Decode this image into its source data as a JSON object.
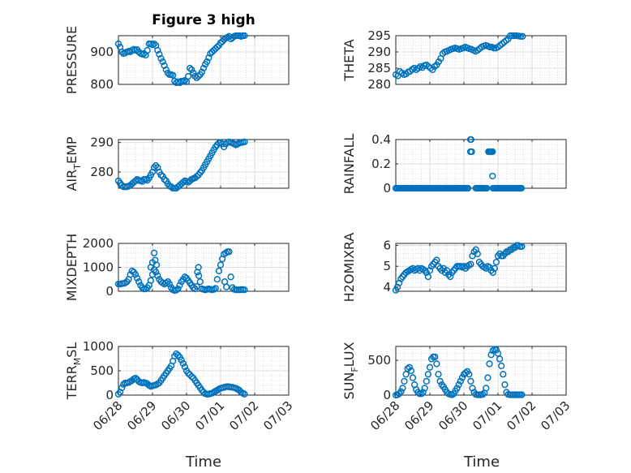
{
  "figure": {
    "title": "Figure 3 high",
    "x_axis_label": "Time",
    "marker_color": "#0072BD",
    "x_tick_labels": [
      "06/28",
      "06/29",
      "06/30",
      "07/01",
      "07/02",
      "07/03"
    ]
  },
  "chart_data": [
    {
      "type": "scatter",
      "ylabel": "PRESSURE",
      "xlabel": "",
      "xlim": [
        "06/28",
        "07/03"
      ],
      "ylim": [
        800,
        950
      ],
      "yticks": [
        800,
        900
      ],
      "grid": true,
      "x_days": [
        0,
        0.05,
        0.1,
        0.15,
        0.2,
        0.25,
        0.3,
        0.35,
        0.4,
        0.45,
        0.5,
        0.55,
        0.6,
        0.65,
        0.7,
        0.75,
        0.8,
        0.85,
        0.9,
        0.95,
        1.0,
        1.05,
        1.1,
        1.15,
        1.2,
        1.25,
        1.3,
        1.35,
        1.4,
        1.45,
        1.5,
        1.55,
        1.6,
        1.65,
        1.7,
        1.75,
        1.8,
        1.85,
        1.9,
        1.95,
        2.0,
        2.05,
        2.1,
        2.15,
        2.2,
        2.25,
        2.3,
        2.35,
        2.4,
        2.45,
        2.5,
        2.55,
        2.6,
        2.65,
        2.7,
        2.75,
        2.8,
        2.85,
        2.9,
        2.95,
        3.0,
        3.05,
        3.1,
        3.15,
        3.2,
        3.25,
        3.3,
        3.35,
        3.4,
        3.45,
        3.5,
        3.55,
        3.6,
        3.65,
        3.7
      ],
      "y": [
        925,
        915,
        900,
        895,
        897,
        900,
        902,
        900,
        905,
        908,
        905,
        907,
        900,
        895,
        893,
        895,
        890,
        905,
        925,
        925,
        922,
        925,
        920,
        905,
        893,
        880,
        870,
        858,
        845,
        835,
        830,
        830,
        828,
        810,
        805,
        808,
        805,
        810,
        810,
        812,
        808,
        825,
        850,
        845,
        835,
        825,
        820,
        825,
        830,
        838,
        850,
        862,
        870,
        882,
        895,
        900,
        905,
        910,
        915,
        920,
        928,
        932,
        938,
        942,
        945,
        948,
        940,
        944,
        948,
        950,
        950,
        951,
        948,
        950,
        951
      ]
    },
    {
      "type": "scatter",
      "ylabel": "THETA",
      "xlabel": "",
      "xlim": [
        "06/28",
        "07/03"
      ],
      "ylim": [
        280,
        295
      ],
      "yticks": [
        280,
        285,
        290,
        295
      ],
      "grid": true,
      "x_days": [
        0,
        0.06,
        0.12,
        0.18,
        0.24,
        0.3,
        0.36,
        0.42,
        0.48,
        0.54,
        0.6,
        0.66,
        0.72,
        0.78,
        0.84,
        0.9,
        0.96,
        1.02,
        1.08,
        1.14,
        1.2,
        1.26,
        1.32,
        1.38,
        1.44,
        1.5,
        1.56,
        1.62,
        1.68,
        1.74,
        1.8,
        1.86,
        1.92,
        1.98,
        2.04,
        2.1,
        2.16,
        2.22,
        2.28,
        2.34,
        2.4,
        2.46,
        2.52,
        2.58,
        2.64,
        2.7,
        2.76,
        2.82,
        2.88,
        2.94,
        3.0,
        3.06,
        3.12,
        3.18,
        3.24,
        3.3,
        3.36,
        3.42,
        3.48,
        3.54,
        3.6,
        3.66,
        3.72
      ],
      "y": [
        283,
        282.6,
        284,
        283.5,
        283,
        283.2,
        283.8,
        284,
        284.6,
        285,
        284.5,
        285,
        285.5,
        285.2,
        285.8,
        286,
        285.5,
        285,
        284.5,
        285.5,
        286,
        287,
        288,
        289.5,
        290,
        290.2,
        290.5,
        290.8,
        291,
        291.2,
        291,
        290.8,
        291,
        291.2,
        291.5,
        291.2,
        291,
        290.8,
        290.5,
        290.2,
        290.5,
        291,
        291.5,
        291.8,
        292,
        291.8,
        291.5,
        291.5,
        291.2,
        291.2,
        291.5,
        292,
        292.5,
        293,
        293.5,
        294,
        295,
        295.2,
        295.1,
        295,
        294.9,
        294.8,
        294.8
      ]
    },
    {
      "type": "scatter",
      "ylabel": "AIR_TEMP",
      "xlabel": "",
      "xlim": [
        "06/28",
        "07/03"
      ],
      "ylim": [
        274.5,
        291
      ],
      "yticks": [
        280,
        290
      ],
      "grid": true,
      "x_days": [
        0,
        0.05,
        0.1,
        0.15,
        0.2,
        0.25,
        0.3,
        0.35,
        0.4,
        0.45,
        0.5,
        0.55,
        0.6,
        0.65,
        0.7,
        0.75,
        0.8,
        0.85,
        0.9,
        0.95,
        1.0,
        1.05,
        1.1,
        1.15,
        1.2,
        1.25,
        1.3,
        1.35,
        1.4,
        1.45,
        1.5,
        1.55,
        1.6,
        1.65,
        1.7,
        1.75,
        1.8,
        1.85,
        1.9,
        1.95,
        2.0,
        2.05,
        2.1,
        2.15,
        2.2,
        2.25,
        2.3,
        2.35,
        2.4,
        2.45,
        2.5,
        2.55,
        2.6,
        2.65,
        2.7,
        2.75,
        2.8,
        2.85,
        2.9,
        2.95,
        3.0,
        3.05,
        3.1,
        3.15,
        3.2,
        3.25,
        3.3,
        3.35,
        3.4,
        3.45,
        3.5,
        3.55,
        3.6,
        3.65,
        3.7
      ],
      "y": [
        277,
        276.2,
        275.5,
        275,
        275,
        275,
        275.2,
        275.5,
        276,
        276.5,
        277,
        277.5,
        277.2,
        277,
        276.8,
        277.5,
        277.5,
        277.2,
        278,
        279,
        280,
        281.5,
        282.2,
        281.5,
        280,
        279,
        278.5,
        277.5,
        277,
        276,
        275.2,
        275,
        274.5,
        274.5,
        274.5,
        275,
        275.5,
        276,
        276.5,
        277,
        276.8,
        276.5,
        277,
        277.5,
        277.8,
        278,
        278.5,
        279,
        279.8,
        280.5,
        281.5,
        282.5,
        283.5,
        284.5,
        285.5,
        286.5,
        287.5,
        288.5,
        289.2,
        289.8,
        290,
        289.5,
        288.5,
        289.5,
        290,
        290.2,
        290,
        289.8,
        289.5,
        289.2,
        289.5,
        289.8,
        290,
        290.1,
        290.2
      ]
    },
    {
      "type": "scatter",
      "ylabel": "RAINFALL",
      "xlabel": "",
      "xlim": [
        "06/28",
        "07/03"
      ],
      "ylim": [
        0,
        0.4
      ],
      "yticks": [
        0,
        0.2,
        0.4
      ],
      "grid": true,
      "segments": [
        {
          "x_days_range": [
            0,
            2.15
          ],
          "y": 0
        },
        {
          "x_days_range": [
            2.35,
            2.67
          ],
          "y": 0
        },
        {
          "x_days_range": [
            2.85,
            3.7
          ],
          "y": 0
        }
      ],
      "x_days": [
        2.19,
        2.21,
        2.23,
        2.19,
        2.72,
        2.74,
        2.76,
        2.78,
        2.8,
        2.82,
        2.84,
        2.84
      ],
      "y": [
        0.4,
        0.4,
        0.3,
        0.3,
        0.3,
        0.3,
        0.3,
        0.3,
        0.3,
        0.3,
        0.3,
        0.1
      ]
    },
    {
      "type": "scatter",
      "ylabel": "MIXDEPTH",
      "xlabel": "",
      "xlim": [
        "06/28",
        "07/03"
      ],
      "ylim": [
        0,
        2000
      ],
      "yticks": [
        0,
        1000,
        2000
      ],
      "grid": true,
      "x_days": [
        0,
        0.05,
        0.1,
        0.15,
        0.2,
        0.25,
        0.3,
        0.35,
        0.4,
        0.45,
        0.5,
        0.55,
        0.6,
        0.65,
        0.7,
        0.75,
        0.8,
        0.85,
        0.9,
        0.95,
        1.0,
        1.05,
        1.1,
        1.15,
        1.2,
        1.25,
        1.3,
        1.35,
        1.4,
        1.45,
        1.5,
        1.55,
        1.6,
        1.65,
        1.7,
        1.75,
        1.8,
        1.85,
        1.9,
        1.95,
        2.0,
        2.05,
        2.1,
        2.15,
        2.2,
        2.25,
        2.3,
        2.35,
        2.4,
        2.45,
        2.5,
        2.55,
        2.6,
        2.65,
        2.7,
        2.75,
        2.8,
        2.85,
        2.9,
        2.95,
        3.0,
        3.05,
        3.1,
        3.15,
        3.2,
        3.25,
        3.3,
        3.35,
        3.4,
        3.45,
        3.5,
        3.55,
        3.6,
        3.65,
        3.7,
        0.95,
        1.0,
        1.05,
        1.08,
        1.12,
        2.32,
        2.36,
        3.12,
        3.17
      ],
      "y": [
        300,
        300,
        320,
        330,
        350,
        400,
        500,
        700,
        850,
        800,
        700,
        550,
        400,
        250,
        150,
        100,
        100,
        150,
        250,
        450,
        700,
        900,
        800,
        650,
        500,
        400,
        350,
        300,
        350,
        400,
        300,
        150,
        60,
        30,
        50,
        100,
        250,
        400,
        500,
        600,
        550,
        450,
        350,
        250,
        150,
        100,
        200,
        1000,
        400,
        100,
        80,
        60,
        80,
        100,
        80,
        60,
        80,
        120,
        500,
        850,
        1100,
        1350,
        1550,
        1600,
        1650,
        1650,
        600,
        150,
        80,
        60,
        60,
        60,
        70,
        70,
        60,
        1000,
        1200,
        1600,
        1300,
        1100,
        800,
        650,
        400,
        180
      ]
    },
    {
      "type": "scatter",
      "ylabel": "H2OMIXRA",
      "xlabel": "",
      "xlim": [
        "06/28",
        "07/03"
      ],
      "ylim": [
        3.8,
        6.1
      ],
      "yticks": [
        4,
        5,
        6
      ],
      "grid": true,
      "x_days": [
        0,
        0.05,
        0.1,
        0.15,
        0.2,
        0.25,
        0.3,
        0.35,
        0.4,
        0.45,
        0.5,
        0.55,
        0.6,
        0.65,
        0.7,
        0.75,
        0.8,
        0.85,
        0.9,
        0.95,
        1.0,
        1.05,
        1.1,
        1.15,
        1.2,
        1.25,
        1.3,
        1.35,
        1.4,
        1.45,
        1.5,
        1.55,
        1.6,
        1.65,
        1.7,
        1.75,
        1.8,
        1.85,
        1.9,
        1.95,
        2.0,
        2.05,
        2.1,
        2.15,
        2.2,
        2.25,
        2.3,
        2.35,
        2.4,
        2.45,
        2.5,
        2.55,
        2.6,
        2.65,
        2.7,
        2.75,
        2.8,
        2.85,
        2.9,
        2.95,
        3.0,
        3.05,
        3.1,
        3.15,
        3.2,
        3.25,
        3.3,
        3.35,
        3.4,
        3.45,
        3.5,
        3.55,
        3.6,
        3.65,
        3.7
      ],
      "y": [
        3.85,
        4.0,
        4.2,
        4.4,
        4.5,
        4.6,
        4.7,
        4.75,
        4.8,
        4.85,
        4.9,
        4.8,
        4.85,
        4.9,
        4.8,
        4.9,
        4.85,
        4.8,
        4.7,
        4.5,
        4.8,
        5.0,
        5.1,
        5.2,
        5.3,
        5.0,
        4.9,
        4.8,
        4.9,
        4.7,
        4.8,
        4.6,
        4.5,
        4.7,
        4.8,
        4.9,
        5.0,
        5.0,
        5.0,
        4.95,
        5.0,
        4.9,
        5.0,
        5.05,
        5.1,
        5.5,
        5.7,
        5.8,
        5.6,
        5.2,
        5.1,
        5.0,
        4.95,
        4.9,
        5.0,
        4.95,
        4.8,
        4.7,
        4.9,
        5.2,
        5.5,
        5.6,
        5.5,
        5.5,
        5.6,
        5.7,
        5.7,
        5.8,
        5.8,
        5.9,
        5.9,
        6.0,
        6.0,
        5.95,
        5.95
      ]
    },
    {
      "type": "scatter",
      "ylabel": "TERR_MSL",
      "xlabel": "",
      "xlim": [
        "06/28",
        "07/03"
      ],
      "ylim": [
        0,
        1000
      ],
      "yticks": [
        0,
        500,
        1000
      ],
      "grid": true,
      "x_days": [
        0,
        0.05,
        0.1,
        0.15,
        0.2,
        0.25,
        0.3,
        0.35,
        0.4,
        0.45,
        0.5,
        0.55,
        0.6,
        0.65,
        0.7,
        0.75,
        0.8,
        0.85,
        0.9,
        0.95,
        1.0,
        1.05,
        1.1,
        1.15,
        1.2,
        1.25,
        1.3,
        1.35,
        1.4,
        1.45,
        1.5,
        1.55,
        1.6,
        1.65,
        1.7,
        1.75,
        1.8,
        1.85,
        1.9,
        1.95,
        2.0,
        2.05,
        2.1,
        2.15,
        2.2,
        2.25,
        2.3,
        2.35,
        2.4,
        2.45,
        2.5,
        2.55,
        2.6,
        2.65,
        2.7,
        2.75,
        2.8,
        2.85,
        2.9,
        2.95,
        3.0,
        3.05,
        3.1,
        3.15,
        3.2,
        3.25,
        3.3,
        3.35,
        3.4,
        3.45,
        3.5,
        3.55,
        3.6,
        3.65,
        3.7
      ],
      "y": [
        20,
        60,
        150,
        220,
        250,
        250,
        260,
        280,
        300,
        330,
        350,
        320,
        280,
        260,
        250,
        260,
        250,
        230,
        200,
        180,
        190,
        200,
        210,
        230,
        250,
        300,
        350,
        400,
        450,
        500,
        550,
        600,
        700,
        800,
        850,
        820,
        780,
        720,
        650,
        580,
        500,
        450,
        420,
        380,
        350,
        300,
        250,
        200,
        150,
        100,
        60,
        30,
        20,
        20,
        30,
        40,
        60,
        80,
        100,
        120,
        140,
        150,
        160,
        170,
        175,
        170,
        165,
        160,
        150,
        140,
        120,
        100,
        60,
        40,
        20
      ]
    },
    {
      "type": "scatter",
      "ylabel": "SUN_FLUX",
      "xlabel": "",
      "xlim": [
        "06/28",
        "07/03"
      ],
      "ylim": [
        0,
        700
      ],
      "yticks": [
        0,
        500
      ],
      "grid": true,
      "x_days": [
        0,
        0.05,
        0.1,
        0.15,
        0.2,
        0.25,
        0.3,
        0.35,
        0.4,
        0.45,
        0.5,
        0.55,
        0.6,
        0.65,
        0.7,
        0.75,
        0.8,
        0.85,
        0.9,
        0.95,
        1.0,
        1.05,
        1.1,
        1.15,
        1.2,
        1.25,
        1.3,
        1.35,
        1.4,
        1.45,
        1.5,
        1.55,
        1.6,
        1.65,
        1.7,
        1.75,
        1.8,
        1.85,
        1.9,
        1.95,
        2.0,
        2.05,
        2.1,
        2.15,
        2.2,
        2.25,
        2.3,
        2.35,
        2.4,
        2.45,
        2.5,
        2.55,
        2.6,
        2.65,
        2.7,
        2.75,
        2.8,
        2.85,
        2.9,
        2.95,
        3.0,
        3.05,
        3.1,
        3.15,
        3.2,
        3.25,
        3.3,
        3.35,
        3.4,
        3.45,
        3.5,
        3.55,
        3.6,
        3.65,
        3.7
      ],
      "y": [
        0,
        5,
        20,
        50,
        100,
        200,
        300,
        380,
        400,
        350,
        250,
        150,
        80,
        40,
        20,
        20,
        40,
        100,
        200,
        300,
        400,
        520,
        550,
        550,
        450,
        300,
        200,
        150,
        120,
        80,
        40,
        20,
        10,
        5,
        20,
        60,
        100,
        150,
        200,
        250,
        300,
        320,
        340,
        300,
        200,
        100,
        40,
        10,
        5,
        5,
        5,
        10,
        30,
        100,
        250,
        450,
        580,
        640,
        660,
        650,
        600,
        520,
        420,
        300,
        150,
        40,
        10,
        5,
        5,
        5,
        5,
        5,
        5,
        5,
        5
      ]
    }
  ]
}
